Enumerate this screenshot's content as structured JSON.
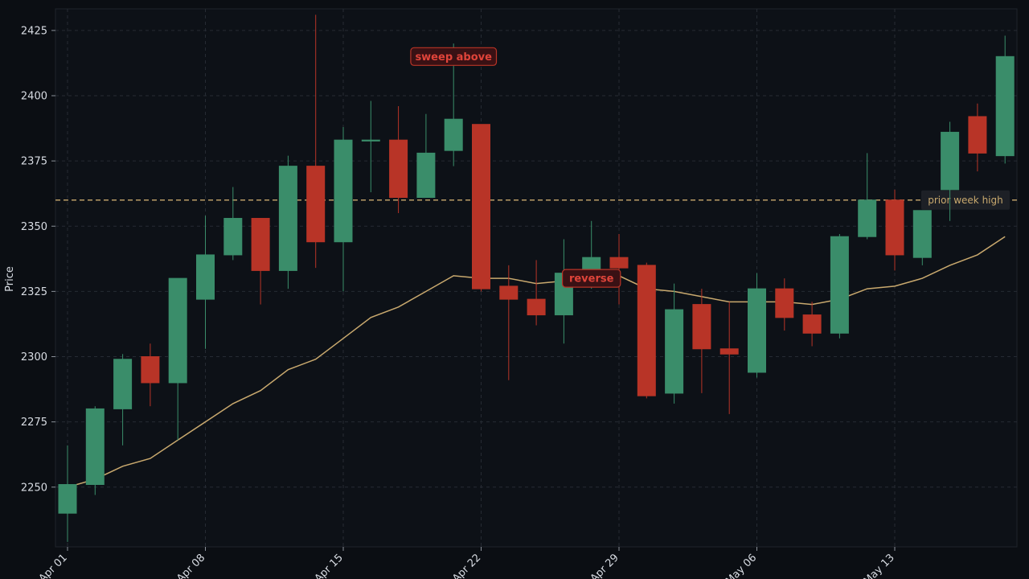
{
  "chart_data": {
    "type": "candlestick",
    "ylabel": "Price",
    "ylim": [
      2220,
      2430
    ],
    "yticks": [
      2250,
      2275,
      2300,
      2325,
      2350,
      2375,
      2400,
      2425
    ],
    "xticks": [
      "Apr 01",
      "Apr 08",
      "Apr 15",
      "Apr 22",
      "Apr 29",
      "May 06",
      "May 13"
    ],
    "x_tick_index": [
      0,
      5,
      10,
      15,
      20,
      25,
      30
    ],
    "grid": true,
    "colors": {
      "up": "#3a8d6a",
      "down": "#b83427",
      "ma": "#c9a96e",
      "background": "#0b0e13",
      "level": "#c9a96e"
    },
    "candles": [
      {
        "date": "Apr 01",
        "open": 2240,
        "high": 2266,
        "low": 2229,
        "close": 2251
      },
      {
        "date": "Apr 02",
        "open": 2251,
        "high": 2281,
        "low": 2247,
        "close": 2280
      },
      {
        "date": "Apr 03",
        "open": 2280,
        "high": 2301,
        "low": 2266,
        "close": 2299
      },
      {
        "date": "Apr 04",
        "open": 2300,
        "high": 2305,
        "low": 2281,
        "close": 2290
      },
      {
        "date": "Apr 05",
        "open": 2290,
        "high": 2330,
        "low": 2268,
        "close": 2330
      },
      {
        "date": "Apr 08",
        "open": 2322,
        "high": 2354,
        "low": 2303,
        "close": 2339
      },
      {
        "date": "Apr 09",
        "open": 2339,
        "high": 2365,
        "low": 2337,
        "close": 2353
      },
      {
        "date": "Apr 10",
        "open": 2353,
        "high": 2353,
        "low": 2320,
        "close": 2333
      },
      {
        "date": "Apr 11",
        "open": 2333,
        "high": 2377,
        "low": 2326,
        "close": 2373
      },
      {
        "date": "Apr 12",
        "open": 2373,
        "high": 2431,
        "low": 2334,
        "close": 2344
      },
      {
        "date": "Apr 15",
        "open": 2344,
        "high": 2388,
        "low": 2325,
        "close": 2383
      },
      {
        "date": "Apr 16",
        "open": 2383,
        "high": 2398,
        "low": 2363,
        "close": 2383
      },
      {
        "date": "Apr 17",
        "open": 2383,
        "high": 2396,
        "low": 2355,
        "close": 2361
      },
      {
        "date": "Apr 18",
        "open": 2361,
        "high": 2393,
        "low": 2361,
        "close": 2378
      },
      {
        "date": "Apr 19",
        "open": 2379,
        "high": 2420,
        "low": 2373,
        "close": 2391
      },
      {
        "date": "Apr 22",
        "open": 2389,
        "high": 2389,
        "low": 2325,
        "close": 2326
      },
      {
        "date": "Apr 23",
        "open": 2327,
        "high": 2335,
        "low": 2291,
        "close": 2322
      },
      {
        "date": "Apr 24",
        "open": 2322,
        "high": 2337,
        "low": 2312,
        "close": 2316
      },
      {
        "date": "Apr 25",
        "open": 2316,
        "high": 2345,
        "low": 2305,
        "close": 2332
      },
      {
        "date": "Apr 26",
        "open": 2329,
        "high": 2352,
        "low": 2326,
        "close": 2338
      },
      {
        "date": "Apr 29",
        "open": 2338,
        "high": 2347,
        "low": 2320,
        "close": 2334
      },
      {
        "date": "Apr 30",
        "open": 2335,
        "high": 2336,
        "low": 2284,
        "close": 2285
      },
      {
        "date": "May 01",
        "open": 2286,
        "high": 2328,
        "low": 2282,
        "close": 2318
      },
      {
        "date": "May 02",
        "open": 2320,
        "high": 2326,
        "low": 2286,
        "close": 2303
      },
      {
        "date": "May 03",
        "open": 2303,
        "high": 2321,
        "low": 2278,
        "close": 2301
      },
      {
        "date": "May 06",
        "open": 2294,
        "high": 2332,
        "low": 2292,
        "close": 2326
      },
      {
        "date": "May 07",
        "open": 2326,
        "high": 2330,
        "low": 2310,
        "close": 2315
      },
      {
        "date": "May 08",
        "open": 2316,
        "high": 2321,
        "low": 2304,
        "close": 2309
      },
      {
        "date": "May 09",
        "open": 2309,
        "high": 2347,
        "low": 2307,
        "close": 2346
      },
      {
        "date": "May 10",
        "open": 2346,
        "high": 2378,
        "low": 2345,
        "close": 2360
      },
      {
        "date": "May 13",
        "open": 2360,
        "high": 2364,
        "low": 2333,
        "close": 2339
      },
      {
        "date": "May 14",
        "open": 2338,
        "high": 2356,
        "low": 2335,
        "close": 2356
      },
      {
        "date": "May 15",
        "open": 2364,
        "high": 2390,
        "low": 2352,
        "close": 2386
      },
      {
        "date": "May 16",
        "open": 2392,
        "high": 2397,
        "low": 2371,
        "close": 2378
      },
      {
        "date": "May 17",
        "open": 2377,
        "high": 2423,
        "low": 2374,
        "close": 2415
      }
    ],
    "moving_average": [
      2250,
      2253,
      2258,
      2261,
      2268,
      2275,
      2282,
      2287,
      2295,
      2299,
      2307,
      2315,
      2319,
      2325,
      2331,
      2330,
      2330,
      2328,
      2329,
      2331,
      2331,
      2326,
      2325,
      2323,
      2321,
      2321,
      2321,
      2320,
      2322,
      2326,
      2327,
      2330,
      2335,
      2339,
      2346
    ],
    "levels": [
      {
        "label": "prior week high",
        "value": 2360
      }
    ],
    "annotations": [
      {
        "text": "sweep above",
        "index": 14,
        "value": 2415
      },
      {
        "text": "reverse",
        "index": 19,
        "value": 2330
      }
    ]
  }
}
